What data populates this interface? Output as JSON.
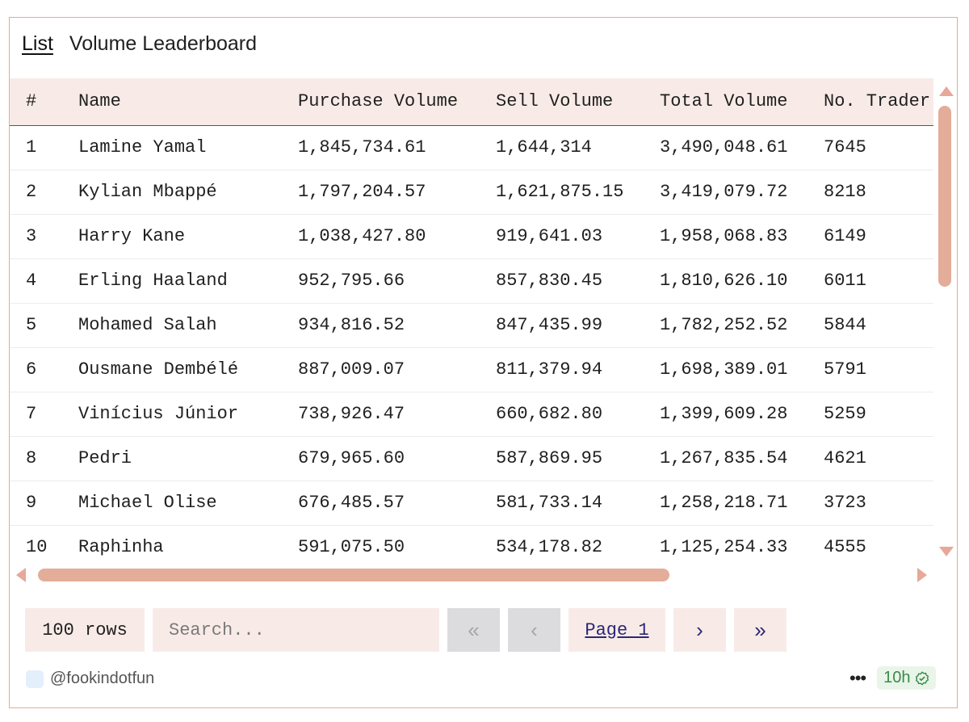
{
  "header": {
    "tab_label": "List",
    "title": "Volume Leaderboard"
  },
  "table": {
    "columns": [
      "#",
      "Name",
      "Purchase Volume",
      "Sell Volume",
      "Total Volume",
      "No. Trader"
    ],
    "rows": [
      [
        "1",
        "Lamine Yamal",
        "1,845,734.61",
        "1,644,314",
        "3,490,048.61",
        "7645"
      ],
      [
        "2",
        "Kylian Mbappé",
        "1,797,204.57",
        "1,621,875.15",
        "3,419,079.72",
        "8218"
      ],
      [
        "3",
        "Harry Kane",
        "1,038,427.80",
        "919,641.03",
        "1,958,068.83",
        "6149"
      ],
      [
        "4",
        "Erling Haaland",
        "952,795.66",
        "857,830.45",
        "1,810,626.10",
        "6011"
      ],
      [
        "5",
        "Mohamed Salah",
        "934,816.52",
        "847,435.99",
        "1,782,252.52",
        "5844"
      ],
      [
        "6",
        "Ousmane Dembélé",
        "887,009.07",
        "811,379.94",
        "1,698,389.01",
        "5791"
      ],
      [
        "7",
        "Vinícius Júnior",
        "738,926.47",
        "660,682.80",
        "1,399,609.28",
        "5259"
      ],
      [
        "8",
        "Pedri",
        "679,965.60",
        "587,869.95",
        "1,267,835.54",
        "4621"
      ],
      [
        "9",
        "Michael Olise",
        "676,485.57",
        "581,733.14",
        "1,258,218.71",
        "3723"
      ],
      [
        "10",
        "Raphinha",
        "591,075.50",
        "534,178.82",
        "1,125,254.33",
        "4555"
      ]
    ]
  },
  "controls": {
    "rows_label": "100 rows",
    "search_placeholder": "Search...",
    "first_icon": "«",
    "prev_icon": "‹",
    "page_label": "Page 1",
    "next_icon": "›",
    "last_icon": "»"
  },
  "footer": {
    "author": "@fookindotfun",
    "more_icon": "•••",
    "age": "10h"
  },
  "colors": {
    "accent": "#e9a98f",
    "header_bg": "#f8ebe7",
    "scroll": "#e3ad9a",
    "link": "#2b2777",
    "badge_green": "#3a8a4a"
  }
}
